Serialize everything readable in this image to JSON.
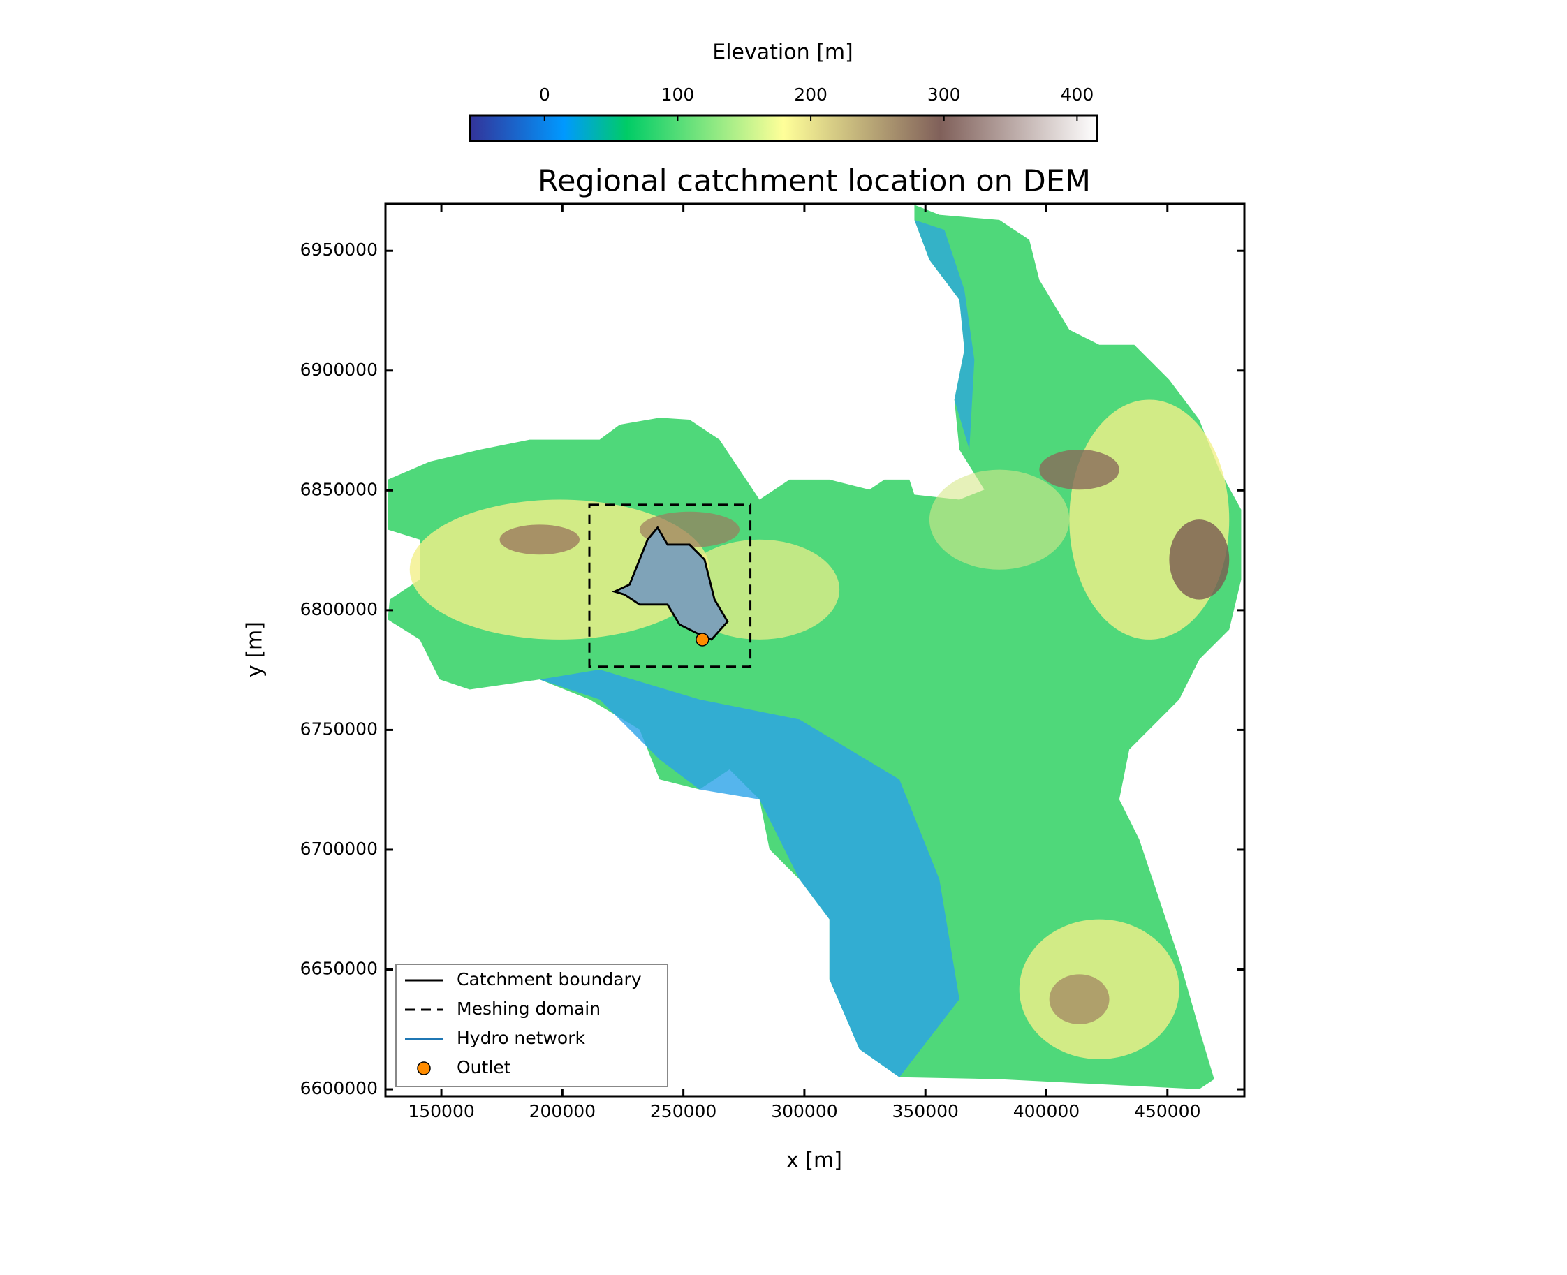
{
  "chart_data": {
    "type": "map",
    "title": "Regional catchment location on DEM",
    "x_label": "x [m]",
    "y_label": "y [m]",
    "xlim": [
      126900,
      481800
    ],
    "ylim": [
      6597100,
      6969600
    ],
    "xticks": [
      150000,
      200000,
      250000,
      300000,
      350000,
      400000,
      450000
    ],
    "yticks": [
      6600000,
      6650000,
      6700000,
      6750000,
      6800000,
      6850000,
      6900000,
      6950000
    ],
    "colorbar": {
      "label": "Elevation [m]",
      "lim": [
        -56,
        415
      ],
      "ticks": [
        0,
        100,
        200,
        300,
        400
      ]
    },
    "series": [
      {
        "name": "Catchment boundary",
        "color": "#000000"
      },
      {
        "name": "Meshing domain",
        "color": "#000000",
        "x": [
          211150,
          277680
        ],
        "y": [
          6776440,
          6844030
        ]
      },
      {
        "name": "Hydro network",
        "color": "#1f77b4"
      },
      {
        "name": "Outlet",
        "color": "#ff8c00",
        "x": [
          257850
        ],
        "y": [
          6787710
        ]
      }
    ]
  }
}
